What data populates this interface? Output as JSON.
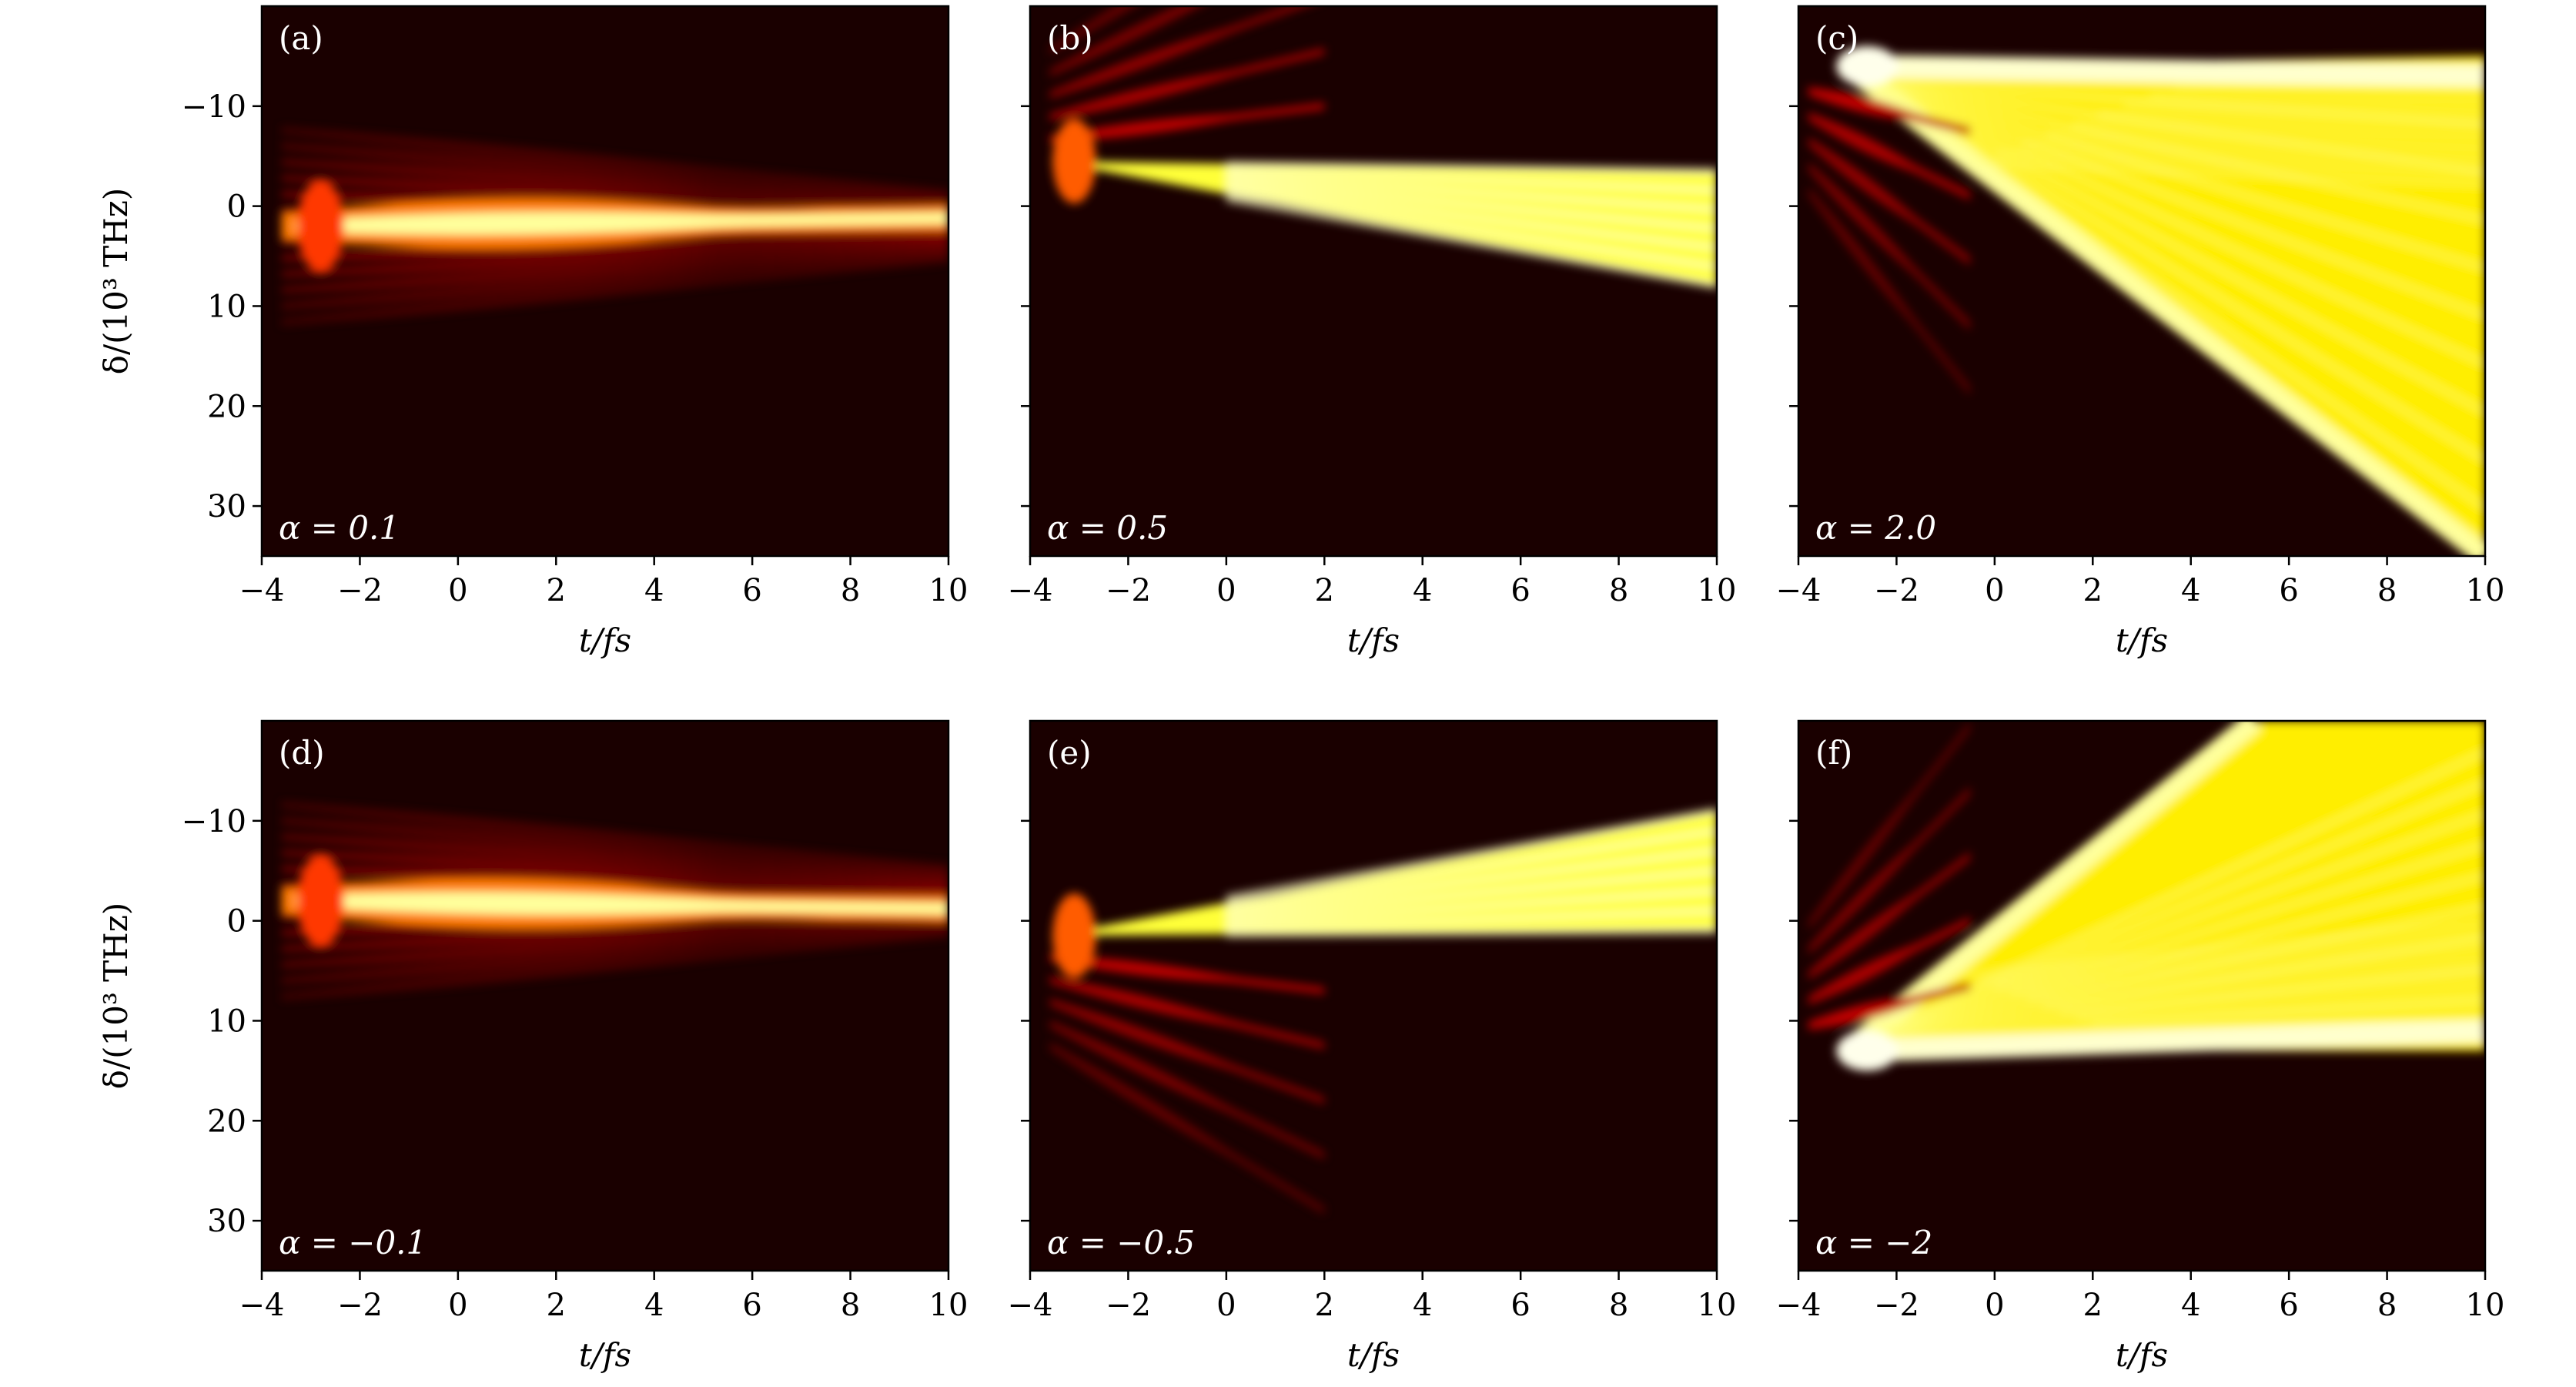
{
  "chart_data": [
    {
      "type": "heatmap",
      "panel": "(a)",
      "alpha_label": "α = 0.1",
      "alpha": 0.1,
      "xlabel": "t/fs",
      "ylabel": "δ/(10³ THz)",
      "xlim": [
        -4,
        10
      ],
      "ylim": [
        35,
        -20
      ],
      "xticks": [
        "−4",
        "−2",
        "0",
        "2",
        "4",
        "6",
        "8",
        "10"
      ],
      "yticks": [
        "−10",
        "0",
        "10",
        "20",
        "30"
      ],
      "colormap": "hot"
    },
    {
      "type": "heatmap",
      "panel": "(b)",
      "alpha_label": "α = 0.5",
      "alpha": 0.5,
      "xlabel": "t/fs",
      "ylabel": "",
      "xlim": [
        -4,
        10
      ],
      "ylim": [
        35,
        -20
      ],
      "xticks": [
        "−4",
        "−2",
        "0",
        "2",
        "4",
        "6",
        "8",
        "10"
      ],
      "yticks": [],
      "colormap": "hot"
    },
    {
      "type": "heatmap",
      "panel": "(c)",
      "alpha_label": "α = 2.0",
      "alpha": 2.0,
      "xlabel": "t/fs",
      "ylabel": "",
      "xlim": [
        -4,
        10
      ],
      "ylim": [
        35,
        -20
      ],
      "xticks": [
        "−4",
        "−2",
        "0",
        "2",
        "4",
        "6",
        "8",
        "10"
      ],
      "yticks": [],
      "colormap": "hot"
    },
    {
      "type": "heatmap",
      "panel": "(d)",
      "alpha_label": "α = −0.1",
      "alpha": -0.1,
      "xlabel": "t/fs",
      "ylabel": "δ/(10³ THz)",
      "xlim": [
        -4,
        10
      ],
      "ylim": [
        35,
        -20
      ],
      "xticks": [
        "−4",
        "−2",
        "0",
        "2",
        "4",
        "6",
        "8",
        "10"
      ],
      "yticks": [
        "−10",
        "0",
        "10",
        "20",
        "30"
      ],
      "colormap": "hot"
    },
    {
      "type": "heatmap",
      "panel": "(e)",
      "alpha_label": "α = −0.5",
      "alpha": -0.5,
      "xlabel": "t/fs",
      "ylabel": "",
      "xlim": [
        -4,
        10
      ],
      "ylim": [
        35,
        -20
      ],
      "xticks": [
        "−4",
        "−2",
        "0",
        "2",
        "4",
        "6",
        "8",
        "10"
      ],
      "yticks": [],
      "colormap": "hot"
    },
    {
      "type": "heatmap",
      "panel": "(f)",
      "alpha_label": "α = −2",
      "alpha": -2.0,
      "xlabel": "t/fs",
      "ylabel": "",
      "xlim": [
        -4,
        10
      ],
      "ylim": [
        35,
        -20
      ],
      "xticks": [
        "−4",
        "−2",
        "0",
        "2",
        "4",
        "6",
        "8",
        "10"
      ],
      "yticks": [],
      "colormap": "hot"
    }
  ]
}
